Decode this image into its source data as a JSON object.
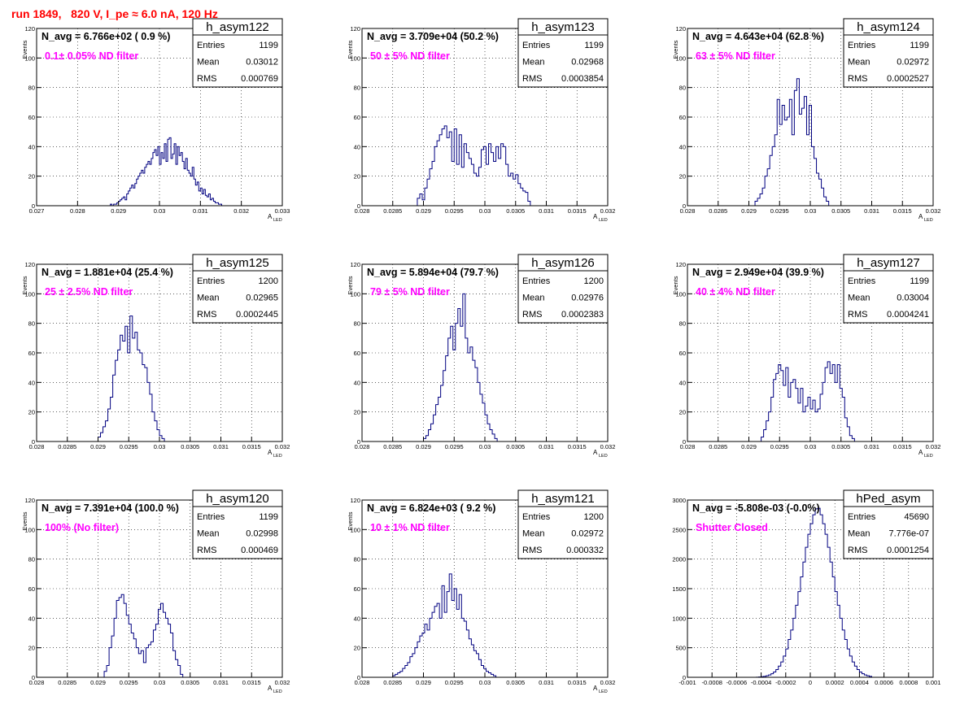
{
  "run_title": "run 1849,   820 V, I_pe ≈ 6.0 nA, 120 Hz",
  "colors": {
    "title": "#ff0000",
    "filter_label": "#ff00ff",
    "histogram": "#000080",
    "grid": "#000000"
  },
  "chart_data": [
    {
      "type": "bar",
      "hist_name": "h_asym122",
      "navg": "N_avg = 6.766e+02 ( 0.9 %)",
      "filter_label": "0.1± 0.05% ND filter",
      "stats": {
        "entries_label": "Entries",
        "entries": "1199",
        "mean_label": "Mean",
        "mean": "0.03012",
        "rms_label": "RMS",
        "rms": "0.000769"
      },
      "ylabel": "Events",
      "xlabel": "A",
      "xlabel_sub": "LED",
      "xlim": [
        0.027,
        0.033
      ],
      "ylim": [
        0,
        120
      ],
      "xticks": [
        0.027,
        0.028,
        0.029,
        0.03,
        0.031,
        0.032,
        0.033
      ],
      "xtick_labels": [
        "0.027",
        "0.028",
        "0.029",
        "0.03",
        "0.031",
        "0.032",
        "0.033"
      ],
      "yticks": [
        0,
        20,
        40,
        60,
        80,
        100,
        120
      ],
      "ytick_labels": [
        "0",
        "20",
        "40",
        "60",
        "80",
        "100",
        "120"
      ],
      "grid": true,
      "bins": {
        "x0": 0.0288,
        "width": 4e-05,
        "values": [
          1,
          0,
          1,
          1,
          2,
          3,
          4,
          5,
          6,
          4,
          8,
          10,
          12,
          14,
          12,
          15,
          18,
          20,
          22,
          24,
          22,
          26,
          28,
          30,
          28,
          32,
          36,
          38,
          34,
          40,
          28,
          36,
          32,
          42,
          30,
          45,
          46,
          32,
          35,
          42,
          28,
          40,
          34,
          36,
          30,
          25,
          32,
          24,
          22,
          20,
          26,
          18,
          14,
          16,
          10,
          12,
          8,
          11,
          7,
          6,
          8,
          4,
          5,
          3,
          2,
          2,
          1,
          1
        ]
      }
    },
    {
      "type": "bar",
      "hist_name": "h_asym123",
      "navg": "N_avg = 3.709e+04 (50.2 %)",
      "filter_label": "50 ± 5% ND filter",
      "stats": {
        "entries_label": "Entries",
        "entries": "1199",
        "mean_label": "Mean",
        "mean": "0.02968",
        "rms_label": "RMS",
        "rms": "0.0003854"
      },
      "ylabel": "Events",
      "xlabel": "A",
      "xlabel_sub": "LED",
      "xlim": [
        0.028,
        0.032
      ],
      "ylim": [
        0,
        120
      ],
      "xticks": [
        0.028,
        0.0285,
        0.029,
        0.0295,
        0.03,
        0.0305,
        0.031,
        0.0315,
        0.032
      ],
      "xtick_labels": [
        "0.028",
        "0.0285",
        "0.029",
        "0.0295",
        "0.03",
        "0.0305",
        "0.031",
        "0.0315",
        "0.032"
      ],
      "yticks": [
        0,
        20,
        40,
        60,
        80,
        100,
        120
      ],
      "ytick_labels": [
        "0",
        "20",
        "40",
        "60",
        "80",
        "100",
        "120"
      ],
      "grid": true,
      "bins": {
        "x0": 0.0289,
        "width": 4e-05,
        "values": [
          5,
          8,
          4,
          12,
          18,
          25,
          30,
          40,
          44,
          48,
          52,
          54,
          46,
          50,
          30,
          52,
          28,
          48,
          26,
          42,
          36,
          32,
          28,
          22,
          20,
          26,
          38,
          40,
          28,
          42,
          36,
          30,
          40,
          32,
          42,
          40,
          28,
          20,
          22,
          18,
          21,
          15,
          12,
          10,
          9,
          3
        ]
      }
    },
    {
      "type": "bar",
      "hist_name": "h_asym124",
      "navg": "N_avg = 4.643e+04 (62.8 %)",
      "filter_label": "63 ± 5% ND filter",
      "stats": {
        "entries_label": "Entries",
        "entries": "1199",
        "mean_label": "Mean",
        "mean": "0.02972",
        "rms_label": "RMS",
        "rms": "0.0002527"
      },
      "ylabel": "Events",
      "xlabel": "A",
      "xlabel_sub": "LED",
      "xlim": [
        0.028,
        0.032
      ],
      "ylim": [
        0,
        120
      ],
      "xticks": [
        0.028,
        0.0285,
        0.029,
        0.0295,
        0.03,
        0.0305,
        0.031,
        0.0315,
        0.032
      ],
      "xtick_labels": [
        "0.028",
        "0.0285",
        "0.029",
        "0.0295",
        "0.03",
        "0.0305",
        "0.031",
        "0.0315",
        "0.032"
      ],
      "yticks": [
        0,
        20,
        40,
        60,
        80,
        100,
        120
      ],
      "ytick_labels": [
        "0",
        "20",
        "40",
        "60",
        "80",
        "100",
        "120"
      ],
      "grid": true,
      "bins": {
        "x0": 0.0291,
        "width": 4e-05,
        "values": [
          3,
          5,
          8,
          12,
          20,
          25,
          34,
          40,
          48,
          72,
          55,
          68,
          58,
          60,
          72,
          48,
          78,
          86,
          62,
          66,
          74,
          48,
          68,
          40,
          32,
          22,
          18,
          12,
          6,
          3
        ]
      }
    },
    {
      "type": "bar",
      "hist_name": "h_asym125",
      "navg": "N_avg = 1.881e+04 (25.4 %)",
      "filter_label": "25 ± 2.5% ND filter",
      "stats": {
        "entries_label": "Entries",
        "entries": "1200",
        "mean_label": "Mean",
        "mean": "0.02965",
        "rms_label": "RMS",
        "rms": "0.0002445"
      },
      "ylabel": "Events",
      "xlabel": "A",
      "xlabel_sub": "LED",
      "xlim": [
        0.028,
        0.032
      ],
      "ylim": [
        0,
        120
      ],
      "xticks": [
        0.028,
        0.0285,
        0.029,
        0.0295,
        0.03,
        0.0305,
        0.031,
        0.0315,
        0.032
      ],
      "xtick_labels": [
        "0.028",
        "0.0285",
        "0.029",
        "0.0295",
        "0.03",
        "0.0305",
        "0.031",
        "0.0315",
        "0.032"
      ],
      "yticks": [
        0,
        20,
        40,
        60,
        80,
        100,
        120
      ],
      "ytick_labels": [
        "0",
        "20",
        "40",
        "60",
        "80",
        "100",
        "120"
      ],
      "grid": true,
      "bins": {
        "x0": 0.029,
        "width": 4e-05,
        "values": [
          3,
          6,
          10,
          14,
          22,
          30,
          45,
          55,
          62,
          72,
          68,
          78,
          60,
          85,
          70,
          74,
          62,
          60,
          52,
          50,
          40,
          32,
          20,
          14,
          8,
          4,
          2
        ]
      }
    },
    {
      "type": "bar",
      "hist_name": "h_asym126",
      "navg": "N_avg = 5.894e+04 (79.7 %)",
      "filter_label": "79 ± 5% ND filter",
      "stats": {
        "entries_label": "Entries",
        "entries": "1200",
        "mean_label": "Mean",
        "mean": "0.02976",
        "rms_label": "RMS",
        "rms": "0.0002383"
      },
      "ylabel": "Events",
      "xlabel": "A",
      "xlabel_sub": "LED",
      "xlim": [
        0.028,
        0.032
      ],
      "ylim": [
        0,
        120
      ],
      "xticks": [
        0.028,
        0.0285,
        0.029,
        0.0295,
        0.03,
        0.0305,
        0.031,
        0.0315,
        0.032
      ],
      "xtick_labels": [
        "0.028",
        "0.0285",
        "0.029",
        "0.0295",
        "0.03",
        "0.0305",
        "0.031",
        "0.0315",
        "0.032"
      ],
      "yticks": [
        0,
        20,
        40,
        60,
        80,
        100,
        120
      ],
      "ytick_labels": [
        "0",
        "20",
        "40",
        "60",
        "80",
        "100",
        "120"
      ],
      "grid": true,
      "bins": {
        "x0": 0.029,
        "width": 4e-05,
        "values": [
          2,
          4,
          8,
          12,
          18,
          25,
          30,
          38,
          48,
          58,
          70,
          78,
          62,
          80,
          90,
          78,
          100,
          70,
          60,
          64,
          55,
          50,
          40,
          32,
          26,
          18,
          12,
          8,
          5,
          2
        ]
      }
    },
    {
      "type": "bar",
      "hist_name": "h_asym127",
      "navg": "N_avg = 2.949e+04 (39.9 %)",
      "filter_label": "40 ± 4% ND filter",
      "stats": {
        "entries_label": "Entries",
        "entries": "1199",
        "mean_label": "Mean",
        "mean": "0.03004",
        "rms_label": "RMS",
        "rms": "0.0004241"
      },
      "ylabel": "Events",
      "xlabel": "A",
      "xlabel_sub": "LED",
      "xlim": [
        0.028,
        0.032
      ],
      "ylim": [
        0,
        120
      ],
      "xticks": [
        0.028,
        0.0285,
        0.029,
        0.0295,
        0.03,
        0.0305,
        0.031,
        0.0315,
        0.032
      ],
      "xtick_labels": [
        "0.028",
        "0.0285",
        "0.029",
        "0.0295",
        "0.03",
        "0.0305",
        "0.031",
        "0.0315",
        "0.032"
      ],
      "yticks": [
        0,
        20,
        40,
        60,
        80,
        100,
        120
      ],
      "ytick_labels": [
        "0",
        "20",
        "40",
        "60",
        "80",
        "100",
        "120"
      ],
      "grid": true,
      "bins": {
        "x0": 0.0292,
        "width": 4e-05,
        "values": [
          3,
          8,
          14,
          20,
          30,
          42,
          46,
          52,
          48,
          38,
          50,
          30,
          40,
          42,
          36,
          26,
          36,
          20,
          24,
          30,
          22,
          28,
          20,
          22,
          32,
          40,
          50,
          54,
          46,
          52,
          40,
          52,
          36,
          30,
          16,
          10,
          4,
          2
        ]
      }
    },
    {
      "type": "bar",
      "hist_name": "h_asym120",
      "navg": "N_avg = 7.391e+04 (100.0 %)",
      "filter_label": "100% (No filter)",
      "stats": {
        "entries_label": "Entries",
        "entries": "1199",
        "mean_label": "Mean",
        "mean": "0.02998",
        "rms_label": "RMS",
        "rms": "0.000469"
      },
      "ylabel": "Events",
      "xlabel": "A",
      "xlabel_sub": "LED",
      "xlim": [
        0.028,
        0.032
      ],
      "ylim": [
        0,
        120
      ],
      "xticks": [
        0.028,
        0.0285,
        0.029,
        0.0295,
        0.03,
        0.0305,
        0.031,
        0.0315,
        0.032
      ],
      "xtick_labels": [
        "0.028",
        "0.0285",
        "0.029",
        "0.0295",
        "0.03",
        "0.0305",
        "0.031",
        "0.0315",
        "0.032"
      ],
      "yticks": [
        0,
        20,
        40,
        60,
        80,
        100,
        120
      ],
      "ytick_labels": [
        "0",
        "20",
        "40",
        "60",
        "80",
        "100",
        "120"
      ],
      "grid": true,
      "bins": {
        "x0": 0.0291,
        "width": 4e-05,
        "values": [
          4,
          8,
          20,
          28,
          40,
          52,
          54,
          56,
          50,
          42,
          36,
          30,
          26,
          20,
          16,
          18,
          10,
          20,
          22,
          24,
          32,
          36,
          46,
          50,
          44,
          40,
          36,
          30,
          18,
          12,
          8,
          2
        ]
      }
    },
    {
      "type": "bar",
      "hist_name": "h_asym121",
      "navg": "N_avg = 6.824e+03 ( 9.2 %)",
      "filter_label": "10 ± 1% ND filter",
      "stats": {
        "entries_label": "Entries",
        "entries": "1200",
        "mean_label": "Mean",
        "mean": "0.02972",
        "rms_label": "RMS",
        "rms": "0.000332"
      },
      "ylabel": "Events",
      "xlabel": "A",
      "xlabel_sub": "LED",
      "xlim": [
        0.028,
        0.032
      ],
      "ylim": [
        0,
        120
      ],
      "xticks": [
        0.028,
        0.0285,
        0.029,
        0.0295,
        0.03,
        0.0305,
        0.031,
        0.0315,
        0.032
      ],
      "xtick_labels": [
        "0.028",
        "0.0285",
        "0.029",
        "0.0295",
        "0.03",
        "0.0305",
        "0.031",
        "0.0315",
        "0.032"
      ],
      "yticks": [
        0,
        20,
        40,
        60,
        80,
        100,
        120
      ],
      "ytick_labels": [
        "0",
        "20",
        "40",
        "60",
        "80",
        "100",
        "120"
      ],
      "grid": true,
      "bins": {
        "x0": 0.0285,
        "width": 4e-05,
        "values": [
          1,
          2,
          3,
          4,
          6,
          8,
          10,
          14,
          16,
          20,
          24,
          28,
          30,
          36,
          32,
          40,
          44,
          48,
          50,
          40,
          62,
          44,
          58,
          70,
          52,
          60,
          46,
          56,
          40,
          38,
          32,
          26,
          22,
          18,
          16,
          12,
          8,
          6,
          4,
          3,
          2,
          1
        ]
      }
    },
    {
      "type": "bar",
      "hist_name": "hPed_asym",
      "navg": "N_avg = -5.808e-03 (-0.0%)",
      "filter_label": "Shutter Closed",
      "stats": {
        "entries_label": "Entries",
        "entries": "45690",
        "mean_label": "Mean",
        "mean": "7.776e-07",
        "rms_label": "RMS",
        "rms": "0.0001254"
      },
      "ylabel": "",
      "xlabel": "",
      "xlabel_sub": "",
      "xlim": [
        -0.001,
        0.001
      ],
      "ylim": [
        0,
        3000
      ],
      "xticks": [
        -0.001,
        -0.0008,
        -0.0006,
        -0.0004,
        -0.0002,
        0,
        0.0002,
        0.0004,
        0.0006,
        0.0008,
        0.001
      ],
      "xtick_labels": [
        "-0.001",
        "-0.0008",
        "-0.0006",
        "-0.0004",
        "-0.0002",
        "0",
        "0.0002",
        "0.0004",
        "0.0006",
        "0.0008",
        "0.001"
      ],
      "yticks": [
        0,
        500,
        1000,
        1500,
        2000,
        2500,
        3000
      ],
      "ytick_labels": [
        "0",
        "500",
        "1000",
        "1500",
        "2000",
        "2500",
        "3000"
      ],
      "grid": true,
      "bins": {
        "x0": -0.00044,
        "width": 2e-05,
        "values": [
          2,
          5,
          10,
          15,
          25,
          40,
          60,
          90,
          130,
          190,
          260,
          360,
          480,
          640,
          800,
          1000,
          1220,
          1450,
          1700,
          1950,
          2200,
          2420,
          2600,
          2750,
          2850,
          2860,
          2750,
          2600,
          2420,
          2200,
          1950,
          1700,
          1450,
          1220,
          1000,
          800,
          640,
          480,
          360,
          260,
          190,
          130,
          90,
          60,
          40,
          25,
          15
        ]
      }
    }
  ]
}
